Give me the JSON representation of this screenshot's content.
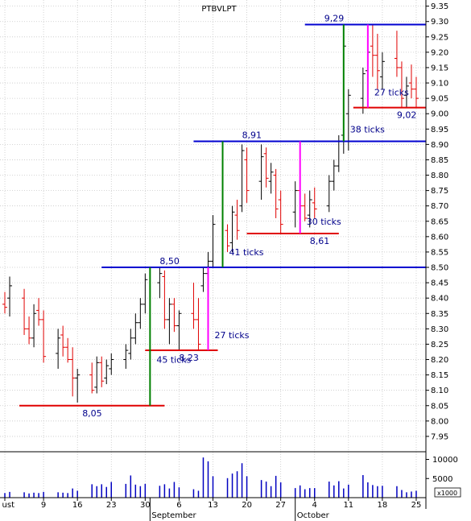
{
  "chart_data": {
    "type": "ohlc",
    "title": "PTBVLPT",
    "price_axis": {
      "ylim": [
        7.9,
        9.37
      ],
      "ticks": [
        "7.95",
        "8.00",
        "8.05",
        "8.10",
        "8.15",
        "8.20",
        "8.25",
        "8.30",
        "8.35",
        "8.40",
        "8.45",
        "8.50",
        "8.55",
        "8.60",
        "8.65",
        "8.70",
        "8.75",
        "8.80",
        "8.85",
        "8.90",
        "8.95",
        "9.00",
        "9.05",
        "9.10",
        "9.15",
        "9.20",
        "9.25",
        "9.30",
        "9.35"
      ]
    },
    "volume_axis": {
      "ticks": [
        "10000",
        "5000"
      ],
      "unit": "x1000",
      "ylim": [
        0,
        12000
      ]
    },
    "x_axis": {
      "day_ticks": [
        {
          "day": 1,
          "label": "ust"
        },
        {
          "day": 9,
          "label": "9"
        },
        {
          "day": 16,
          "label": "16"
        },
        {
          "day": 23,
          "label": "23"
        },
        {
          "day": 30,
          "label": "30"
        },
        {
          "day": 37,
          "label": "6"
        },
        {
          "day": 44,
          "label": "13"
        },
        {
          "day": 51,
          "label": "20"
        },
        {
          "day": 58,
          "label": "27"
        },
        {
          "day": 65,
          "label": "4"
        },
        {
          "day": 72,
          "label": "11"
        },
        {
          "day": 79,
          "label": "18"
        },
        {
          "day": 86,
          "label": "25"
        }
      ],
      "months": [
        {
          "day": 31,
          "label": "September"
        },
        {
          "day": 61,
          "label": "October"
        }
      ],
      "xlim": [
        0,
        88
      ]
    },
    "bars": [
      {
        "d": 1,
        "o": 8.38,
        "h": 8.42,
        "l": 8.35,
        "c": 8.37,
        "v": 1200,
        "dir": "down"
      },
      {
        "d": 2,
        "o": 8.4,
        "h": 8.47,
        "l": 8.34,
        "c": 8.44,
        "v": 1500,
        "dir": "up"
      },
      {
        "d": 5,
        "o": 8.4,
        "h": 8.43,
        "l": 8.28,
        "c": 8.3,
        "v": 1400,
        "dir": "down"
      },
      {
        "d": 6,
        "o": 8.3,
        "h": 8.34,
        "l": 8.25,
        "c": 8.27,
        "v": 1100,
        "dir": "down"
      },
      {
        "d": 7,
        "o": 8.27,
        "h": 8.38,
        "l": 8.24,
        "c": 8.35,
        "v": 1300,
        "dir": "up"
      },
      {
        "d": 8,
        "o": 8.36,
        "h": 8.4,
        "l": 8.31,
        "c": 8.33,
        "v": 1200,
        "dir": "down"
      },
      {
        "d": 9,
        "o": 8.33,
        "h": 8.36,
        "l": 8.19,
        "c": 8.21,
        "v": 1500,
        "dir": "down"
      },
      {
        "d": 12,
        "o": 8.22,
        "h": 8.3,
        "l": 8.17,
        "c": 8.27,
        "v": 1400,
        "dir": "up"
      },
      {
        "d": 13,
        "o": 8.28,
        "h": 8.31,
        "l": 8.21,
        "c": 8.24,
        "v": 1300,
        "dir": "down"
      },
      {
        "d": 14,
        "o": 8.24,
        "h": 8.27,
        "l": 8.19,
        "c": 8.2,
        "v": 1200,
        "dir": "down"
      },
      {
        "d": 15,
        "o": 8.2,
        "h": 8.24,
        "l": 8.08,
        "c": 8.14,
        "v": 2400,
        "dir": "down"
      },
      {
        "d": 16,
        "o": 8.14,
        "h": 8.17,
        "l": 8.06,
        "c": 8.15,
        "v": 1800,
        "dir": "up"
      },
      {
        "d": 19,
        "o": 8.15,
        "h": 8.19,
        "l": 8.09,
        "c": 8.1,
        "v": 3500,
        "dir": "down"
      },
      {
        "d": 20,
        "o": 8.11,
        "h": 8.21,
        "l": 8.09,
        "c": 8.19,
        "v": 3000,
        "dir": "up"
      },
      {
        "d": 21,
        "o": 8.19,
        "h": 8.21,
        "l": 8.11,
        "c": 8.13,
        "v": 3500,
        "dir": "down"
      },
      {
        "d": 22,
        "o": 8.14,
        "h": 8.2,
        "l": 8.12,
        "c": 8.18,
        "v": 2800,
        "dir": "up"
      },
      {
        "d": 23,
        "o": 8.17,
        "h": 8.22,
        "l": 8.15,
        "c": 8.2,
        "v": 4100,
        "dir": "up"
      },
      {
        "d": 26,
        "o": 8.2,
        "h": 8.25,
        "l": 8.17,
        "c": 8.23,
        "v": 3600,
        "dir": "up"
      },
      {
        "d": 27,
        "o": 8.22,
        "h": 8.3,
        "l": 8.2,
        "c": 8.27,
        "v": 5800,
        "dir": "up"
      },
      {
        "d": 28,
        "o": 8.27,
        "h": 8.35,
        "l": 8.25,
        "c": 8.32,
        "v": 3400,
        "dir": "up"
      },
      {
        "d": 29,
        "o": 8.32,
        "h": 8.4,
        "l": 8.3,
        "c": 8.38,
        "v": 3000,
        "dir": "up"
      },
      {
        "d": 30,
        "o": 8.38,
        "h": 8.48,
        "l": 8.35,
        "c": 8.46,
        "v": 3600,
        "dir": "up"
      },
      {
        "d": 33,
        "o": 8.45,
        "h": 8.5,
        "l": 8.4,
        "c": 8.48,
        "v": 3100,
        "dir": "up"
      },
      {
        "d": 34,
        "o": 8.47,
        "h": 8.49,
        "l": 8.3,
        "c": 8.33,
        "v": 3500,
        "dir": "down"
      },
      {
        "d": 35,
        "o": 8.33,
        "h": 8.4,
        "l": 8.25,
        "c": 8.38,
        "v": 2400,
        "dir": "up"
      },
      {
        "d": 36,
        "o": 8.38,
        "h": 8.4,
        "l": 8.29,
        "c": 8.31,
        "v": 4100,
        "dir": "down"
      },
      {
        "d": 37,
        "o": 8.31,
        "h": 8.36,
        "l": 8.23,
        "c": 8.35,
        "v": 2700,
        "dir": "up"
      },
      {
        "d": 40,
        "o": 8.35,
        "h": 8.45,
        "l": 8.3,
        "c": 8.33,
        "v": 2200,
        "dir": "down"
      },
      {
        "d": 41,
        "o": 8.33,
        "h": 8.4,
        "l": 8.23,
        "c": 8.25,
        "v": 1800,
        "dir": "down"
      },
      {
        "d": 42,
        "o": 8.44,
        "h": 8.5,
        "l": 8.42,
        "c": 8.48,
        "v": 10500,
        "dir": "up"
      },
      {
        "d": 43,
        "o": 8.48,
        "h": 8.55,
        "l": 8.42,
        "c": 8.52,
        "v": 9500,
        "dir": "up"
      },
      {
        "d": 44,
        "o": 8.52,
        "h": 8.67,
        "l": 8.5,
        "c": 8.64,
        "v": 5600,
        "dir": "up"
      },
      {
        "d": 47,
        "o": 8.62,
        "h": 8.64,
        "l": 8.55,
        "c": 8.57,
        "v": 5100,
        "dir": "down"
      },
      {
        "d": 48,
        "o": 8.58,
        "h": 8.7,
        "l": 8.55,
        "c": 8.68,
        "v": 6300,
        "dir": "up"
      },
      {
        "d": 49,
        "o": 8.67,
        "h": 8.72,
        "l": 8.59,
        "c": 8.62,
        "v": 6900,
        "dir": "down"
      },
      {
        "d": 50,
        "o": 8.7,
        "h": 8.9,
        "l": 8.68,
        "c": 8.88,
        "v": 9000,
        "dir": "up"
      },
      {
        "d": 51,
        "o": 8.85,
        "h": 8.89,
        "l": 8.71,
        "c": 8.75,
        "v": 5600,
        "dir": "down"
      },
      {
        "d": 54,
        "o": 8.78,
        "h": 8.9,
        "l": 8.72,
        "c": 8.86,
        "v": 4600,
        "dir": "up"
      },
      {
        "d": 55,
        "o": 8.87,
        "h": 8.89,
        "l": 8.76,
        "c": 8.79,
        "v": 4200,
        "dir": "down"
      },
      {
        "d": 56,
        "o": 8.78,
        "h": 8.84,
        "l": 8.74,
        "c": 8.81,
        "v": 3000,
        "dir": "up"
      },
      {
        "d": 57,
        "o": 8.8,
        "h": 8.82,
        "l": 8.66,
        "c": 8.69,
        "v": 5700,
        "dir": "down"
      },
      {
        "d": 58,
        "o": 8.72,
        "h": 8.75,
        "l": 8.61,
        "c": 8.64,
        "v": 4000,
        "dir": "down"
      },
      {
        "d": 61,
        "o": 8.68,
        "h": 8.78,
        "l": 8.63,
        "c": 8.75,
        "v": 2500,
        "dir": "up"
      },
      {
        "d": 62,
        "o": 8.75,
        "h": 8.8,
        "l": 8.68,
        "c": 8.7,
        "v": 3200,
        "dir": "down"
      },
      {
        "d": 63,
        "o": 8.7,
        "h": 8.74,
        "l": 8.65,
        "c": 8.66,
        "v": 2200,
        "dir": "down"
      },
      {
        "d": 64,
        "o": 8.67,
        "h": 8.75,
        "l": 8.63,
        "c": 8.72,
        "v": 2500,
        "dir": "up"
      },
      {
        "d": 65,
        "o": 8.71,
        "h": 8.76,
        "l": 8.66,
        "c": 8.69,
        "v": 2500,
        "dir": "down"
      },
      {
        "d": 68,
        "o": 8.7,
        "h": 8.8,
        "l": 8.68,
        "c": 8.78,
        "v": 4200,
        "dir": "up"
      },
      {
        "d": 69,
        "o": 8.78,
        "h": 8.85,
        "l": 8.75,
        "c": 8.83,
        "v": 3200,
        "dir": "up"
      },
      {
        "d": 70,
        "o": 8.83,
        "h": 8.93,
        "l": 8.81,
        "c": 8.91,
        "v": 4300,
        "dir": "up"
      },
      {
        "d": 71,
        "o": 8.93,
        "h": 9.28,
        "l": 8.87,
        "c": 9.22,
        "v": 2400,
        "dir": "up"
      },
      {
        "d": 72,
        "o": 9.0,
        "h": 9.08,
        "l": 8.88,
        "c": 9.06,
        "v": 3400,
        "dir": "up"
      },
      {
        "d": 75,
        "o": 9.05,
        "h": 9.15,
        "l": 9.0,
        "c": 9.13,
        "v": 5900,
        "dir": "up"
      },
      {
        "d": 76,
        "o": 9.14,
        "h": 9.25,
        "l": 9.1,
        "c": 9.2,
        "v": 4000,
        "dir": "up"
      },
      {
        "d": 77,
        "o": 9.22,
        "h": 9.29,
        "l": 9.12,
        "c": 9.19,
        "v": 3300,
        "dir": "down"
      },
      {
        "d": 78,
        "o": 9.19,
        "h": 9.26,
        "l": 9.08,
        "c": 9.14,
        "v": 3000,
        "dir": "down"
      },
      {
        "d": 79,
        "o": 9.12,
        "h": 9.2,
        "l": 9.08,
        "c": 9.17,
        "v": 3100,
        "dir": "up"
      },
      {
        "d": 82,
        "o": 9.18,
        "h": 9.27,
        "l": 9.12,
        "c": 9.15,
        "v": 3000,
        "dir": "down"
      },
      {
        "d": 83,
        "o": 9.15,
        "h": 9.17,
        "l": 9.02,
        "c": 9.05,
        "v": 2000,
        "dir": "down"
      },
      {
        "d": 84,
        "o": 9.06,
        "h": 9.12,
        "l": 9.02,
        "c": 9.09,
        "v": 1400,
        "dir": "up"
      },
      {
        "d": 85,
        "o": 9.1,
        "h": 9.16,
        "l": 9.05,
        "c": 9.08,
        "v": 1600,
        "dir": "down"
      },
      {
        "d": 86,
        "o": 9.08,
        "h": 9.12,
        "l": 9.02,
        "c": 9.05,
        "v": 1800,
        "dir": "down"
      }
    ],
    "annotations": {
      "hlines": [
        {
          "from": 4,
          "to": 34,
          "y": 8.05,
          "color": "#e00000",
          "label": "8,05",
          "label_day": 17,
          "label_pos": "below"
        },
        {
          "from": 30,
          "to": 45,
          "y": 8.23,
          "color": "#e00000",
          "label": "8,23",
          "label_day": 37,
          "label_pos": "below"
        },
        {
          "from": 51,
          "to": 70,
          "y": 8.61,
          "color": "#e00000",
          "label": "8,61",
          "label_day": 64,
          "label_pos": "below"
        },
        {
          "from": 73,
          "to": 93,
          "y": 9.02,
          "color": "#e00000",
          "label": "9,02",
          "label_day": 82,
          "label_pos": "below"
        },
        {
          "from": 21,
          "to": 105,
          "y": 8.5,
          "color": "#0000d0",
          "label": "8,50",
          "label_day": 33,
          "label_pos": "above"
        },
        {
          "from": 40,
          "to": 105,
          "y": 8.91,
          "color": "#0000d0",
          "label": "8,91",
          "label_day": 50,
          "label_pos": "above"
        },
        {
          "from": 63,
          "to": 105,
          "y": 9.29,
          "color": "#0000d0",
          "label": "9,29",
          "label_day": 67,
          "label_pos": "above"
        }
      ],
      "vlines": [
        {
          "day": 31,
          "y1": 8.05,
          "y2": 8.5,
          "color": "#008000",
          "label": "45 ticks",
          "label_y": 8.2
        },
        {
          "day": 43,
          "y1": 8.23,
          "y2": 8.5,
          "color": "#ff00ff",
          "label": "27 ticks",
          "label_y": 8.28
        },
        {
          "day": 46,
          "y1": 8.5,
          "y2": 8.91,
          "color": "#008000",
          "label": "41 ticks",
          "label_y": 8.55
        },
        {
          "day": 62,
          "y1": 8.61,
          "y2": 8.91,
          "color": "#ff00ff",
          "label": "30 ticks",
          "label_y": 8.65
        },
        {
          "day": 71,
          "y1": 8.91,
          "y2": 9.29,
          "color": "#008000",
          "label": "38 ticks",
          "label_y": 8.95
        },
        {
          "day": 76,
          "y1": 9.02,
          "y2": 9.29,
          "color": "#ff00ff",
          "label": "27 ticks",
          "label_y": 9.07
        }
      ]
    },
    "colors": {
      "up_bar": "#000000",
      "down_bar": "#e00000",
      "volume": "#0000c0",
      "grid": "#c8c8c8",
      "label_text": "#00008b"
    }
  }
}
